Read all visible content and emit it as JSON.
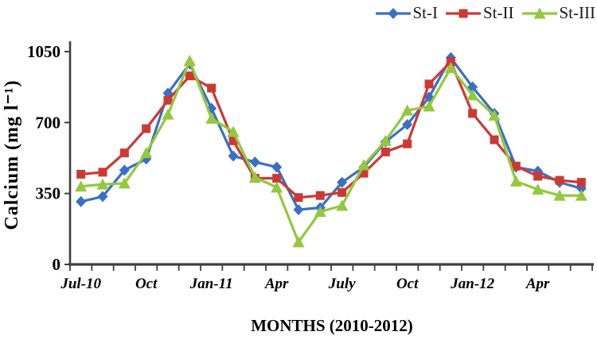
{
  "figure": {
    "background": "#ffffff",
    "axis_color": "#3f3f3f",
    "text_color": "#000000"
  },
  "chart_data": {
    "type": "line",
    "xlabel": "MONTHS (2010-2012)",
    "ylabel": "Calcium (mg l⁻¹)",
    "ylim": [
      0,
      1050
    ],
    "yticks": [
      0,
      350,
      700,
      1050
    ],
    "grid": "off",
    "legend_position": "top-right",
    "categories": [
      "Jul-10",
      "Aug-10",
      "Sep-10",
      "Oct-10",
      "Nov-10",
      "Dec-10",
      "Jan-11",
      "Feb-11",
      "Mar-11",
      "Apr-11",
      "May-11",
      "Jun-11",
      "Jul-11",
      "Aug-11",
      "Sep-11",
      "Oct-11",
      "Nov-11",
      "Dec-11",
      "Jan-12",
      "Feb-12",
      "Mar-12",
      "Apr-12",
      "May-12",
      "Jun-12"
    ],
    "visible_x_tick_labels": [
      {
        "i": 0,
        "t": "Jul-10"
      },
      {
        "i": 3,
        "t": "Oct"
      },
      {
        "i": 6,
        "t": "Jan-11"
      },
      {
        "i": 9,
        "t": "Apr"
      },
      {
        "i": 12,
        "t": "July"
      },
      {
        "i": 15,
        "t": "Oct"
      },
      {
        "i": 18,
        "t": "Jan-12"
      },
      {
        "i": 21,
        "t": "Apr"
      }
    ],
    "series": [
      {
        "name": "St-I",
        "color": "#3a6fc4",
        "marker": "diamond",
        "values": [
          310,
          335,
          465,
          520,
          845,
          990,
          770,
          535,
          505,
          480,
          270,
          280,
          405,
          480,
          605,
          690,
          825,
          1020,
          875,
          745,
          480,
          460,
          405,
          375
        ]
      },
      {
        "name": "St-II",
        "color": "#cc3935",
        "marker": "square",
        "values": [
          445,
          455,
          550,
          670,
          810,
          930,
          870,
          610,
          425,
          425,
          330,
          340,
          355,
          450,
          555,
          595,
          890,
          1000,
          745,
          615,
          485,
          435,
          415,
          405
        ]
      },
      {
        "name": "St-III",
        "color": "#94c83d",
        "marker": "triangle",
        "values": [
          385,
          395,
          400,
          550,
          740,
          1005,
          720,
          655,
          430,
          380,
          110,
          260,
          290,
          490,
          610,
          760,
          780,
          970,
          835,
          735,
          410,
          370,
          340,
          340
        ]
      }
    ]
  }
}
